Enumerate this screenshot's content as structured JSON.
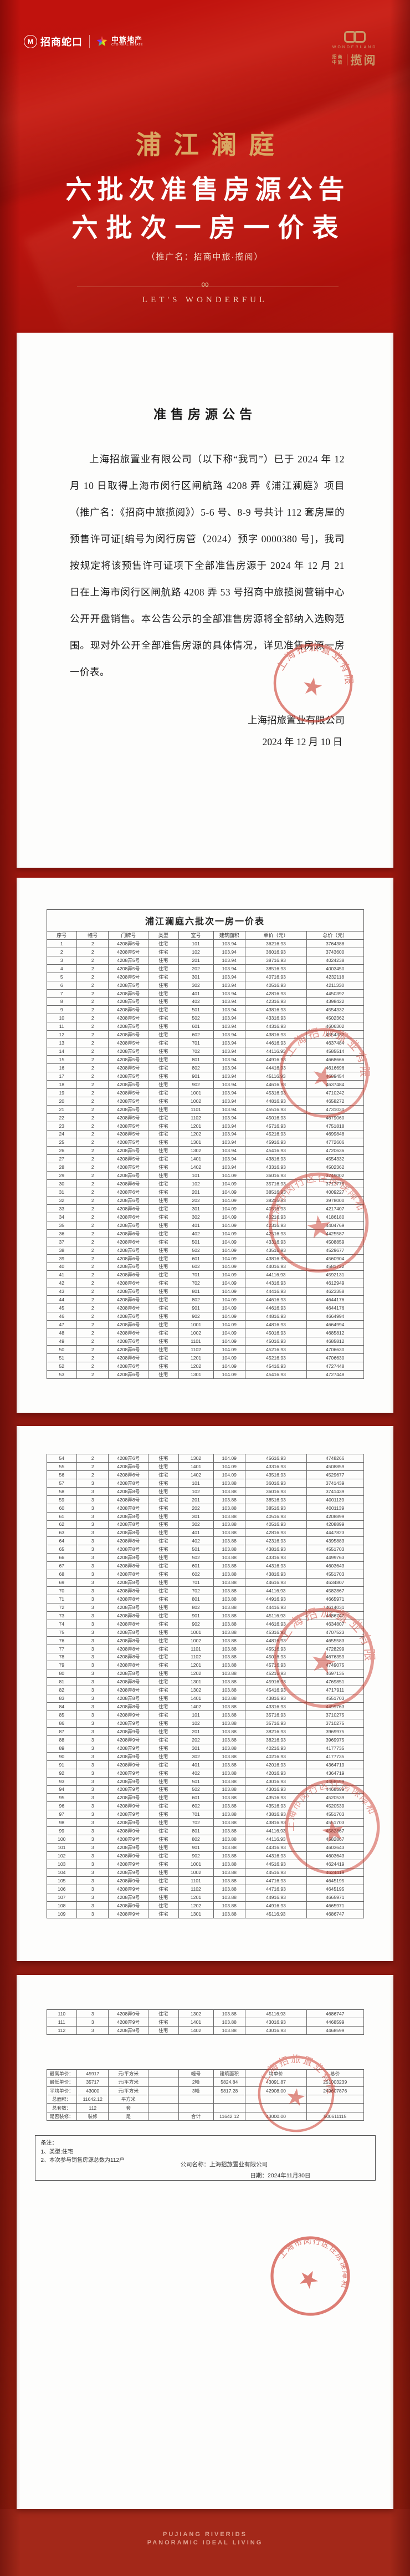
{
  "colors": {
    "hero_red": "#c0120d",
    "card_bg": "#fdfdfc",
    "gold": "#d9a763",
    "stamp_red": "#cc3a2c",
    "footer_bg": "#a32819",
    "footer_text": "#dfa08e"
  },
  "header": {
    "brand_left": {
      "mark": "M",
      "name": "招商蛇口",
      "partner_name": "中旅地产",
      "partner_sub": "CTG REAL ESTATE"
    },
    "brand_right": {
      "wordmark": "WONDERLAND",
      "stack1": "招商",
      "stack2": "中旅",
      "name": "揽阅"
    }
  },
  "hero": {
    "project_name": "浦江澜庭",
    "title_line1": "六批次准售房源公告",
    "title_line2": "六批次一房一价表",
    "promo_note": "（推广名：招商中旅·揽阅）",
    "ornament": "∞",
    "tagline": "LET'S WONDERFUL"
  },
  "announcement": {
    "title": "准售房源公告",
    "body": "上海招旅置业有限公司（以下称“我司”）已于 2024 年 12 月 10 日取得上海市闵行区闸航路 4208 弄《浦江澜庭》项目（推广名：《招商中旅揽阅》）5-6 号、8-9 号共计 112 套房屋的预售许可证[编号为闵行房管（2024）预字 0000380 号]，我司按规定将该预售许可证项下全部准售房源于 2024 年 12 月 21 日在上海市闵行区闸航路 4208 弄 53 号招商中旅揽阅营销中心公开开盘销售。本公告公示的全部准售房源将全部纳入选购范围。现对外公开全部准售房源的具体情况，详见准售房源一房一价表。",
    "signature_company": "上海招旅置业有限公司",
    "signature_date": "2024 年 12 月 10 日"
  },
  "price_table": {
    "title": "浦江澜庭六批次一房一价表",
    "columns": [
      "序号",
      "幢号",
      "门牌号",
      "类型",
      "室号",
      "建筑面积",
      "单价（元）",
      "总价（元）"
    ],
    "rows": [
      [
        "1",
        "2",
        "4208弄5号",
        "住宅",
        "101",
        "103.94",
        "36216.93",
        "3764388"
      ],
      [
        "2",
        "2",
        "4208弄5号",
        "住宅",
        "102",
        "103.94",
        "36016.93",
        "3743600"
      ],
      [
        "3",
        "2",
        "4208弄5号",
        "住宅",
        "201",
        "103.94",
        "38716.93",
        "4024238"
      ],
      [
        "4",
        "2",
        "4208弄5号",
        "住宅",
        "202",
        "103.94",
        "38516.93",
        "4003450"
      ],
      [
        "5",
        "2",
        "4208弄5号",
        "住宅",
        "301",
        "103.94",
        "40716.93",
        "4232118"
      ],
      [
        "6",
        "2",
        "4208弄5号",
        "住宅",
        "302",
        "103.94",
        "40516.93",
        "4211330"
      ],
      [
        "7",
        "2",
        "4208弄5号",
        "住宅",
        "401",
        "103.94",
        "42816.93",
        "4450392"
      ],
      [
        "8",
        "2",
        "4208弄5号",
        "住宅",
        "402",
        "103.94",
        "42316.93",
        "4398422"
      ],
      [
        "9",
        "2",
        "4208弄5号",
        "住宅",
        "501",
        "103.94",
        "43816.93",
        "4554332"
      ],
      [
        "10",
        "2",
        "4208弄5号",
        "住宅",
        "502",
        "103.94",
        "43316.93",
        "4502362"
      ],
      [
        "11",
        "2",
        "4208弄5号",
        "住宅",
        "601",
        "103.94",
        "44316.93",
        "4606302"
      ],
      [
        "12",
        "2",
        "4208弄5号",
        "住宅",
        "602",
        "103.94",
        "43816.93",
        "4554332"
      ],
      [
        "13",
        "2",
        "4208弄5号",
        "住宅",
        "701",
        "103.94",
        "44616.93",
        "4637484"
      ],
      [
        "14",
        "2",
        "4208弄5号",
        "住宅",
        "702",
        "103.94",
        "44116.93",
        "4585514"
      ],
      [
        "15",
        "2",
        "4208弄5号",
        "住宅",
        "801",
        "103.94",
        "44916.93",
        "4668666"
      ],
      [
        "16",
        "2",
        "4208弄5号",
        "住宅",
        "802",
        "103.94",
        "44416.93",
        "4616696"
      ],
      [
        "17",
        "2",
        "4208弄5号",
        "住宅",
        "901",
        "103.94",
        "45116.93",
        "4689454"
      ],
      [
        "18",
        "2",
        "4208弄5号",
        "住宅",
        "902",
        "103.94",
        "44616.93",
        "4637484"
      ],
      [
        "19",
        "2",
        "4208弄5号",
        "住宅",
        "1001",
        "103.94",
        "45316.93",
        "4710242"
      ],
      [
        "20",
        "2",
        "4208弄5号",
        "住宅",
        "1002",
        "103.94",
        "44816.93",
        "4658272"
      ],
      [
        "21",
        "2",
        "4208弄5号",
        "住宅",
        "1101",
        "103.94",
        "45516.93",
        "4731030"
      ],
      [
        "22",
        "2",
        "4208弄5号",
        "住宅",
        "1102",
        "103.94",
        "45016.93",
        "4679060"
      ],
      [
        "23",
        "2",
        "4208弄5号",
        "住宅",
        "1201",
        "103.94",
        "45716.93",
        "4751818"
      ],
      [
        "24",
        "2",
        "4208弄5号",
        "住宅",
        "1202",
        "103.94",
        "45216.93",
        "4699848"
      ],
      [
        "25",
        "2",
        "4208弄5号",
        "住宅",
        "1301",
        "103.94",
        "45916.93",
        "4772606"
      ],
      [
        "26",
        "2",
        "4208弄5号",
        "住宅",
        "1302",
        "103.94",
        "45416.93",
        "4720636"
      ],
      [
        "27",
        "2",
        "4208弄5号",
        "住宅",
        "1401",
        "103.94",
        "43816.93",
        "4554332"
      ],
      [
        "28",
        "2",
        "4208弄5号",
        "住宅",
        "1402",
        "103.94",
        "43316.93",
        "4502362"
      ],
      [
        "29",
        "2",
        "4208弄6号",
        "住宅",
        "101",
        "104.09",
        "36016.93",
        "3749002"
      ],
      [
        "30",
        "2",
        "4208弄6号",
        "住宅",
        "102",
        "104.09",
        "35716.93",
        "3717775"
      ],
      [
        "31",
        "2",
        "4208弄6号",
        "住宅",
        "201",
        "104.09",
        "38516.93",
        "4009227"
      ],
      [
        "32",
        "2",
        "4208弄6号",
        "住宅",
        "202",
        "104.09",
        "38216.93",
        "3978000"
      ],
      [
        "33",
        "2",
        "4208弄6号",
        "住宅",
        "301",
        "104.09",
        "40516.93",
        "4217407"
      ],
      [
        "34",
        "2",
        "4208弄6号",
        "住宅",
        "302",
        "104.09",
        "40216.93",
        "4186180"
      ],
      [
        "35",
        "2",
        "4208弄6号",
        "住宅",
        "401",
        "104.09",
        "42316.93",
        "4404769"
      ],
      [
        "36",
        "2",
        "4208弄6号",
        "住宅",
        "402",
        "104.09",
        "42516.93",
        "4425587"
      ],
      [
        "37",
        "2",
        "4208弄6号",
        "住宅",
        "501",
        "104.09",
        "43316.93",
        "4508859"
      ],
      [
        "38",
        "2",
        "4208弄6号",
        "住宅",
        "502",
        "104.09",
        "43516.93",
        "4529677"
      ],
      [
        "39",
        "2",
        "4208弄6号",
        "住宅",
        "601",
        "104.09",
        "43816.93",
        "4560904"
      ],
      [
        "40",
        "2",
        "4208弄6号",
        "住宅",
        "602",
        "104.09",
        "44016.93",
        "4581722"
      ],
      [
        "41",
        "2",
        "4208弄6号",
        "住宅",
        "701",
        "104.09",
        "44116.93",
        "4592131"
      ],
      [
        "42",
        "2",
        "4208弄6号",
        "住宅",
        "702",
        "104.09",
        "44316.93",
        "4612949"
      ],
      [
        "43",
        "2",
        "4208弄6号",
        "住宅",
        "801",
        "104.09",
        "44416.93",
        "4623358"
      ],
      [
        "44",
        "2",
        "4208弄6号",
        "住宅",
        "802",
        "104.09",
        "44616.93",
        "4644176"
      ],
      [
        "45",
        "2",
        "4208弄6号",
        "住宅",
        "901",
        "104.09",
        "44616.93",
        "4644176"
      ],
      [
        "46",
        "2",
        "4208弄6号",
        "住宅",
        "902",
        "104.09",
        "44816.93",
        "4664994"
      ],
      [
        "47",
        "2",
        "4208弄6号",
        "住宅",
        "1001",
        "104.09",
        "44816.93",
        "4664994"
      ],
      [
        "48",
        "2",
        "4208弄6号",
        "住宅",
        "1002",
        "104.09",
        "45016.93",
        "4685812"
      ],
      [
        "49",
        "2",
        "4208弄6号",
        "住宅",
        "1101",
        "104.09",
        "45016.93",
        "4685812"
      ],
      [
        "50",
        "2",
        "4208弄6号",
        "住宅",
        "1102",
        "104.09",
        "45216.93",
        "4706630"
      ],
      [
        "51",
        "2",
        "4208弄6号",
        "住宅",
        "1201",
        "104.09",
        "45216.93",
        "4706630"
      ],
      [
        "52",
        "2",
        "4208弄6号",
        "住宅",
        "1202",
        "104.09",
        "45416.93",
        "4727448"
      ],
      [
        "53",
        "2",
        "4208弄6号",
        "住宅",
        "1301",
        "104.09",
        "45416.93",
        "4727448"
      ],
      [
        "54",
        "2",
        "4208弄6号",
        "住宅",
        "1302",
        "104.09",
        "45616.93",
        "4748266"
      ],
      [
        "55",
        "2",
        "4208弄6号",
        "住宅",
        "1401",
        "104.09",
        "43316.93",
        "4508859"
      ],
      [
        "56",
        "2",
        "4208弄6号",
        "住宅",
        "1402",
        "104.09",
        "43516.93",
        "4529677"
      ],
      [
        "57",
        "3",
        "4208弄8号",
        "住宅",
        "101",
        "103.88",
        "36016.93",
        "3741439"
      ],
      [
        "58",
        "3",
        "4208弄8号",
        "住宅",
        "102",
        "103.88",
        "36016.93",
        "3741439"
      ],
      [
        "59",
        "3",
        "4208弄8号",
        "住宅",
        "201",
        "103.88",
        "38516.93",
        "4001139"
      ],
      [
        "60",
        "3",
        "4208弄8号",
        "住宅",
        "202",
        "103.88",
        "38516.93",
        "4001139"
      ],
      [
        "61",
        "3",
        "4208弄8号",
        "住宅",
        "301",
        "103.88",
        "40516.93",
        "4208899"
      ],
      [
        "62",
        "3",
        "4208弄8号",
        "住宅",
        "302",
        "103.88",
        "40516.93",
        "4208899"
      ],
      [
        "63",
        "3",
        "4208弄8号",
        "住宅",
        "401",
        "103.88",
        "42816.93",
        "4447823"
      ],
      [
        "64",
        "3",
        "4208弄8号",
        "住宅",
        "402",
        "103.88",
        "42316.93",
        "4395883"
      ],
      [
        "65",
        "3",
        "4208弄8号",
        "住宅",
        "501",
        "103.88",
        "43816.93",
        "4551703"
      ],
      [
        "66",
        "3",
        "4208弄8号",
        "住宅",
        "502",
        "103.88",
        "43316.93",
        "4499763"
      ],
      [
        "67",
        "3",
        "4208弄8号",
        "住宅",
        "601",
        "103.88",
        "44316.93",
        "4603643"
      ],
      [
        "68",
        "3",
        "4208弄8号",
        "住宅",
        "602",
        "103.88",
        "43816.93",
        "4551703"
      ],
      [
        "69",
        "3",
        "4208弄8号",
        "住宅",
        "701",
        "103.88",
        "44616.93",
        "4634807"
      ],
      [
        "70",
        "3",
        "4208弄8号",
        "住宅",
        "702",
        "103.88",
        "44116.93",
        "4582867"
      ],
      [
        "71",
        "3",
        "4208弄8号",
        "住宅",
        "801",
        "103.88",
        "44916.93",
        "4665971"
      ],
      [
        "72",
        "3",
        "4208弄8号",
        "住宅",
        "802",
        "103.88",
        "44416.93",
        "4614031"
      ],
      [
        "73",
        "3",
        "4208弄8号",
        "住宅",
        "901",
        "103.88",
        "45116.93",
        "4686747"
      ],
      [
        "74",
        "3",
        "4208弄8号",
        "住宅",
        "902",
        "103.88",
        "44616.93",
        "4634807"
      ],
      [
        "75",
        "3",
        "4208弄8号",
        "住宅",
        "1001",
        "103.88",
        "45316.93",
        "4707523"
      ],
      [
        "76",
        "3",
        "4208弄8号",
        "住宅",
        "1002",
        "103.88",
        "44816.93",
        "4655583"
      ],
      [
        "77",
        "3",
        "4208弄8号",
        "住宅",
        "1101",
        "103.88",
        "45516.93",
        "4728299"
      ],
      [
        "78",
        "3",
        "4208弄8号",
        "住宅",
        "1102",
        "103.88",
        "45016.93",
        "4676359"
      ],
      [
        "79",
        "3",
        "4208弄8号",
        "住宅",
        "1201",
        "103.88",
        "45716.93",
        "4749075"
      ],
      [
        "80",
        "3",
        "4208弄8号",
        "住宅",
        "1202",
        "103.88",
        "45216.93",
        "4697135"
      ],
      [
        "81",
        "3",
        "4208弄8号",
        "住宅",
        "1301",
        "103.88",
        "45916.93",
        "4769851"
      ],
      [
        "82",
        "3",
        "4208弄8号",
        "住宅",
        "1302",
        "103.88",
        "45416.93",
        "4717911"
      ],
      [
        "83",
        "3",
        "4208弄8号",
        "住宅",
        "1401",
        "103.88",
        "43816.93",
        "4551703"
      ],
      [
        "84",
        "3",
        "4208弄8号",
        "住宅",
        "1402",
        "103.88",
        "43316.93",
        "4499763"
      ],
      [
        "85",
        "3",
        "4208弄9号",
        "住宅",
        "101",
        "103.88",
        "35716.93",
        "3710275"
      ],
      [
        "86",
        "3",
        "4208弄9号",
        "住宅",
        "102",
        "103.88",
        "35716.93",
        "3710275"
      ],
      [
        "87",
        "3",
        "4208弄9号",
        "住宅",
        "201",
        "103.88",
        "38216.93",
        "3969975"
      ],
      [
        "88",
        "3",
        "4208弄9号",
        "住宅",
        "202",
        "103.88",
        "38216.93",
        "3969975"
      ],
      [
        "89",
        "3",
        "4208弄9号",
        "住宅",
        "301",
        "103.88",
        "40216.93",
        "4177735"
      ],
      [
        "90",
        "3",
        "4208弄9号",
        "住宅",
        "302",
        "103.88",
        "40216.93",
        "4177735"
      ],
      [
        "91",
        "3",
        "4208弄9号",
        "住宅",
        "401",
        "103.88",
        "42016.93",
        "4364719"
      ],
      [
        "92",
        "3",
        "4208弄9号",
        "住宅",
        "402",
        "103.88",
        "42016.93",
        "4364719"
      ],
      [
        "93",
        "3",
        "4208弄9号",
        "住宅",
        "501",
        "103.88",
        "43016.93",
        "4468599"
      ],
      [
        "94",
        "3",
        "4208弄9号",
        "住宅",
        "502",
        "103.88",
        "43016.93",
        "4468599"
      ],
      [
        "95",
        "3",
        "4208弄9号",
        "住宅",
        "601",
        "103.88",
        "43516.93",
        "4520539"
      ],
      [
        "96",
        "3",
        "4208弄9号",
        "住宅",
        "602",
        "103.88",
        "43516.93",
        "4520539"
      ],
      [
        "97",
        "3",
        "4208弄9号",
        "住宅",
        "701",
        "103.88",
        "43816.93",
        "4551703"
      ],
      [
        "98",
        "3",
        "4208弄9号",
        "住宅",
        "702",
        "103.88",
        "43816.93",
        "4551703"
      ],
      [
        "99",
        "3",
        "4208弄9号",
        "住宅",
        "801",
        "103.88",
        "44116.93",
        "4582867"
      ],
      [
        "100",
        "3",
        "4208弄9号",
        "住宅",
        "802",
        "103.88",
        "44116.93",
        "4582867"
      ],
      [
        "101",
        "3",
        "4208弄9号",
        "住宅",
        "901",
        "103.88",
        "44316.93",
        "4603643"
      ],
      [
        "102",
        "3",
        "4208弄9号",
        "住宅",
        "902",
        "103.88",
        "44316.93",
        "4603643"
      ],
      [
        "103",
        "3",
        "4208弄9号",
        "住宅",
        "1001",
        "103.88",
        "44516.93",
        "4624419"
      ],
      [
        "104",
        "3",
        "4208弄9号",
        "住宅",
        "1002",
        "103.88",
        "44516.93",
        "4624419"
      ],
      [
        "105",
        "3",
        "4208弄9号",
        "住宅",
        "1101",
        "103.88",
        "44716.93",
        "4645195"
      ],
      [
        "106",
        "3",
        "4208弄9号",
        "住宅",
        "1102",
        "103.88",
        "44716.93",
        "4645195"
      ],
      [
        "107",
        "3",
        "4208弄9号",
        "住宅",
        "1201",
        "103.88",
        "44916.93",
        "4665971"
      ],
      [
        "108",
        "3",
        "4208弄9号",
        "住宅",
        "1202",
        "103.88",
        "44916.93",
        "4665971"
      ],
      [
        "109",
        "3",
        "4208弄9号",
        "住宅",
        "1301",
        "103.88",
        "45116.93",
        "4686747"
      ],
      [
        "110",
        "3",
        "4208弄9号",
        "住宅",
        "1302",
        "103.88",
        "45116.93",
        "4686747"
      ],
      [
        "111",
        "3",
        "4208弄9号",
        "住宅",
        "1401",
        "103.88",
        "43016.93",
        "4468599"
      ],
      [
        "112",
        "3",
        "4208弄9号",
        "住宅",
        "1402",
        "103.88",
        "43016.93",
        "4468599"
      ]
    ]
  },
  "summary_table": {
    "rows": [
      [
        "最高单价：",
        "45917",
        "元/平方米",
        "",
        "幢号",
        "建筑面积",
        "均单价",
        "总价"
      ],
      [
        "最低单价：",
        "35717",
        "元/平方米",
        "",
        "2幢",
        "5824.84",
        "43091.87",
        "251003239"
      ],
      [
        "平均单价：",
        "43000",
        "元/平方米",
        "",
        "3幢",
        "5817.28",
        "42908.00",
        "249607876"
      ],
      [
        "总面积：",
        "11642.12",
        "平方米",
        "",
        "",
        "",
        "",
        ""
      ],
      [
        "总套数：",
        "112",
        "套",
        "",
        "",
        "",
        "",
        ""
      ],
      [
        "是否装修：",
        "装修",
        "是",
        "",
        "合计",
        "11642.12",
        "43000.00",
        "500611115"
      ]
    ]
  },
  "notes": {
    "label": "备注：",
    "line1": "1、类型:住宅",
    "line2": "2、本次参与销售房源总数为112户",
    "company_label": "公司名称：上海招旅置业有限公司",
    "date_label": "日期：2024年11月30日"
  },
  "stamps": {
    "company": "上海招旅置业有限公司",
    "bureau": "上海市闵行区住房保障和房屋管理局"
  },
  "footer": {
    "line1": "PUJIANG RIVERIDS",
    "line2": "PANORAMIC IDEAL LIVING"
  }
}
